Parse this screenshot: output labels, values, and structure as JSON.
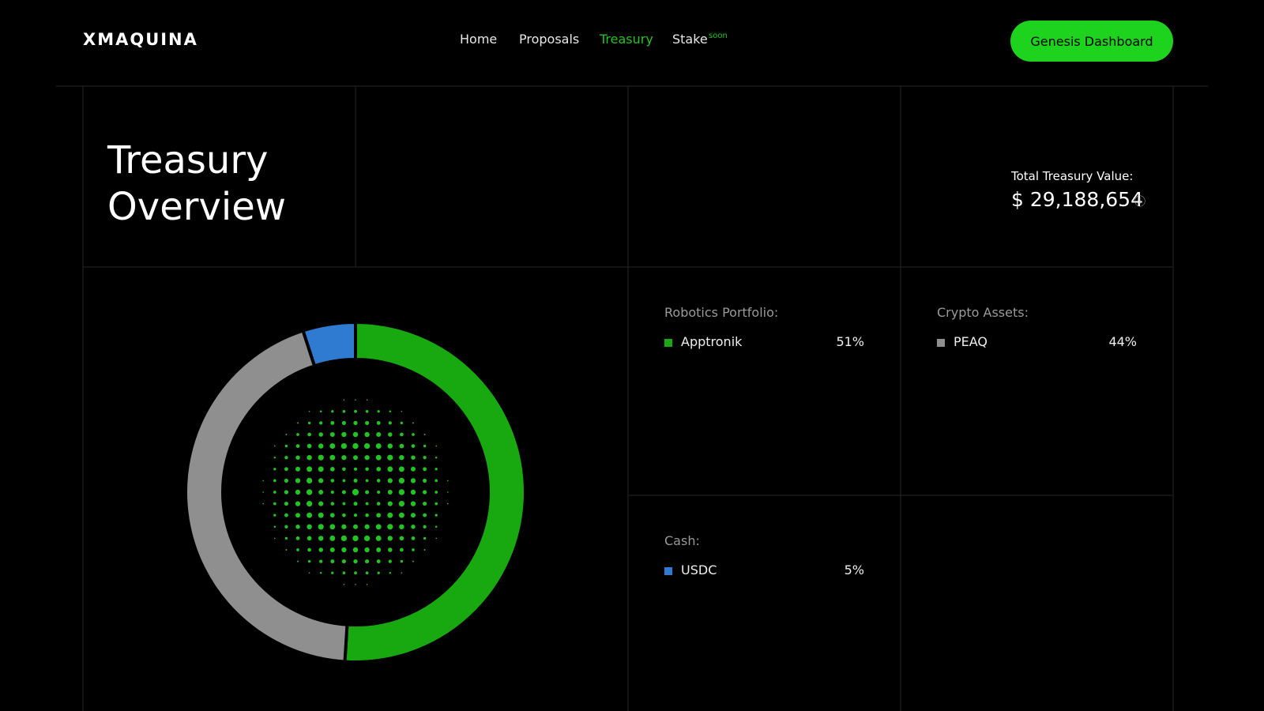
{
  "nav": {
    "logo": "XMAQUINA",
    "links": [
      "Home",
      "Proposals",
      "Treasury",
      "Stake"
    ],
    "badge": "soon",
    "button": "Genesis Dashboard"
  },
  "header": {
    "title": "Treasury Overview",
    "total_label": "Total Treasury Value:",
    "total_value": "$ 29,188,654",
    "info_icon": "ⓘ"
  },
  "chart_data": {
    "type": "pie",
    "categories": [
      "Apptronik",
      "PEAQ",
      "USDC"
    ],
    "values": [
      51,
      44,
      5
    ],
    "value_labels": [
      "51%",
      "44%",
      "5%"
    ],
    "groups": [
      "Robotics Portfolio:",
      "Crypto Assets:",
      "Cash:"
    ],
    "colors": [
      "#17a90f",
      "#8f8f8f",
      "#2f7bd1"
    ]
  }
}
